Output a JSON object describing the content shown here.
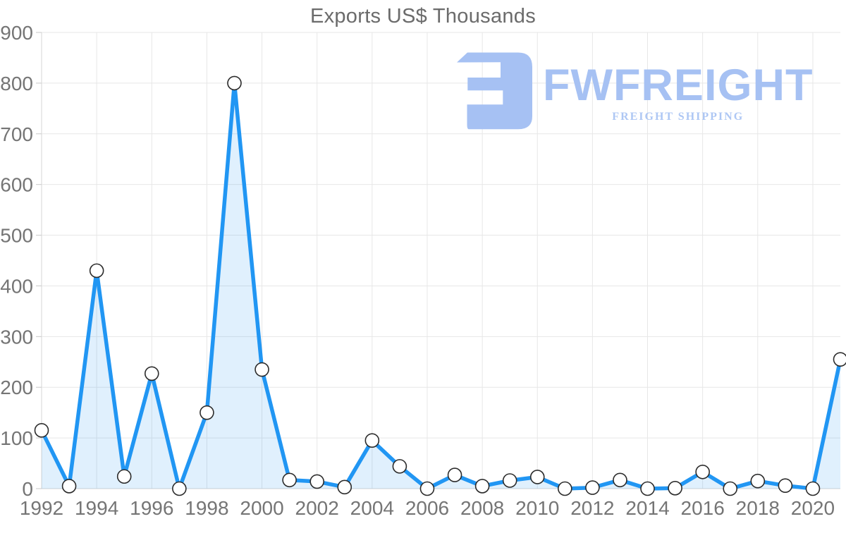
{
  "page_title": "Exports US$ Thousands",
  "chart_data": {
    "type": "area",
    "title": "Exports US$ Thousands",
    "x": [
      1992,
      1993,
      1994,
      1995,
      1996,
      1997,
      1998,
      1999,
      2000,
      2001,
      2002,
      2003,
      2004,
      2005,
      2006,
      2007,
      2008,
      2009,
      2010,
      2011,
      2012,
      2013,
      2014,
      2015,
      2016,
      2017,
      2018,
      2019,
      2020,
      2021
    ],
    "values": [
      115,
      5,
      430,
      24,
      227,
      0,
      150,
      800,
      235,
      17,
      14,
      3,
      95,
      44,
      0,
      27,
      5,
      16,
      23,
      0,
      2,
      17,
      0,
      1,
      33,
      0,
      15,
      6,
      0,
      255
    ],
    "xlabel": "",
    "ylabel": "",
    "ylim": [
      0,
      900
    ],
    "ytick_step": 100,
    "xtick_step": 2,
    "grid": true,
    "legend": "none",
    "marker": "circle",
    "colors": {
      "line": "#2196f3",
      "fill": "#2196f3",
      "fill_opacity": 0.14,
      "marker_fill": "#ffffff",
      "marker_stroke": "#2b2b2b",
      "grid": "#e7e7e7",
      "axis": "#d4d4d4",
      "tick": "#c9c9c9",
      "tick_label": "#757575",
      "title": "#6b6b6b"
    }
  },
  "logo": {
    "brand": "FWFREIGHT",
    "tagline": "FREIGHT SHIPPING",
    "color": "#a6c1f3",
    "tagline_color": "#aec7f4",
    "icon": "fwfreight-f-mark"
  }
}
